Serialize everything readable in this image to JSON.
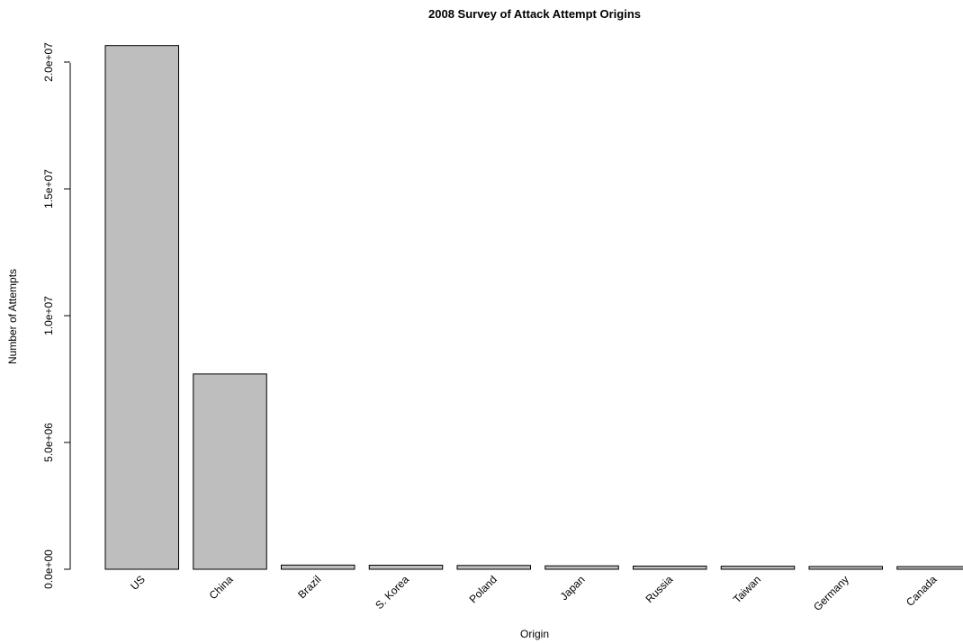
{
  "chart_data": {
    "type": "bar",
    "title": "2008 Survey of Attack Attempt Origins",
    "xlabel": "Origin",
    "ylabel": "Number of Attempts",
    "categories": [
      "US",
      "China",
      "Brazil",
      "S. Korea",
      "Poland",
      "Japan",
      "Russia",
      "Taiwan",
      "Germany",
      "Canada"
    ],
    "values": [
      20650000,
      7700000,
      165000,
      160000,
      150000,
      135000,
      125000,
      120000,
      110000,
      105000
    ],
    "ylim": [
      0,
      20650000
    ],
    "yticks": [
      0,
      5000000,
      10000000,
      15000000,
      20000000
    ],
    "ytick_labels": [
      "0.0e+00",
      "5.0e+06",
      "1.0e+07",
      "1.5e+07",
      "2.0e+07"
    ],
    "grid": false,
    "legend": "none",
    "bar_color": "#bebebe",
    "edge_color": "#000000"
  }
}
